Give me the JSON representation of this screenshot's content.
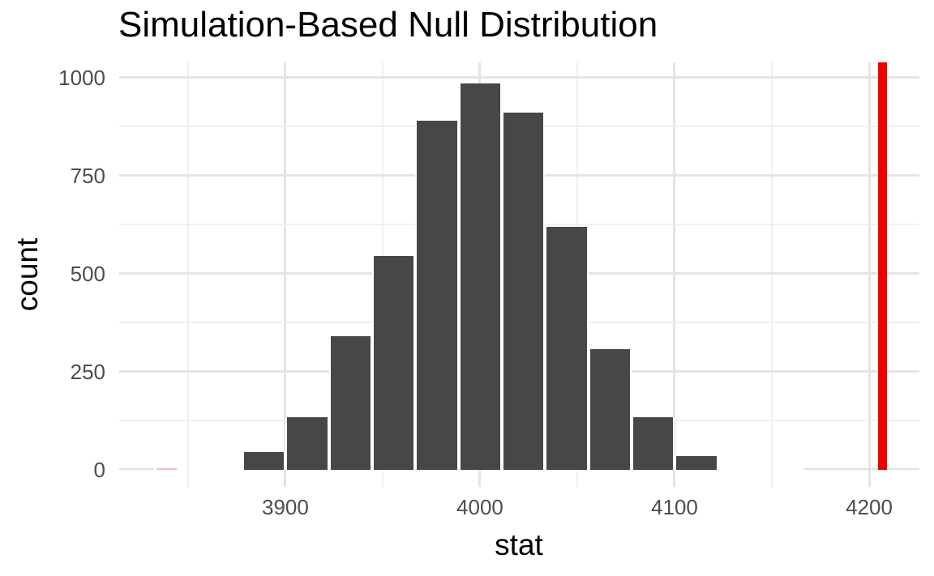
{
  "chart_data": {
    "type": "histogram",
    "title": "Simulation-Based Null Distribution",
    "xlabel": "stat",
    "ylabel": "count",
    "x_ticks": [
      3900,
      4000,
      4100,
      4200
    ],
    "x_tick_labels": [
      "3900",
      "4000",
      "4100",
      "4200"
    ],
    "x_minor_gridlines": [
      3850,
      3950,
      4050,
      4150
    ],
    "y_ticks": [
      0,
      250,
      500,
      750,
      1000
    ],
    "y_tick_labels": [
      "0",
      "250",
      "500",
      "750",
      "1000"
    ],
    "y_minor_gridlines": [
      125,
      375,
      625,
      875
    ],
    "xlim": [
      3814.5,
      4225.7
    ],
    "ylim": [
      -44,
      1039
    ],
    "grid": true,
    "legend": false,
    "bins": {
      "start": 3877.9,
      "width": 22.22,
      "centers": [
        3889.0,
        3911.1,
        3933.3,
        3955.6,
        3977.8,
        4000.0,
        4022.2,
        4044.5,
        4066.7,
        4088.9,
        4111.1
      ],
      "counts": [
        45,
        135,
        340,
        545,
        890,
        985,
        910,
        620,
        307,
        134,
        36
      ]
    },
    "near_zero_marks": [
      {
        "from": 3814.5,
        "to": 3832.5,
        "count": 2,
        "color": "#e0e0e0"
      },
      {
        "from": 3833.8,
        "to": 3844.2,
        "count": 2,
        "color": "#f5bcc2"
      },
      {
        "from": 4166.8,
        "to": 4225.7,
        "count": 2,
        "color": "#e0e0e0"
      }
    ],
    "observed_stat": 4207,
    "colors": {
      "bar_fill": "#474747",
      "bar_border": "#ffffff",
      "grid_major": "#e4e4e4",
      "grid_minor": "#f0f0f0",
      "observed_line": "#ee0000",
      "tick_text": "#4d4d4d",
      "title_text": "#000000",
      "background": "#ffffff"
    }
  }
}
